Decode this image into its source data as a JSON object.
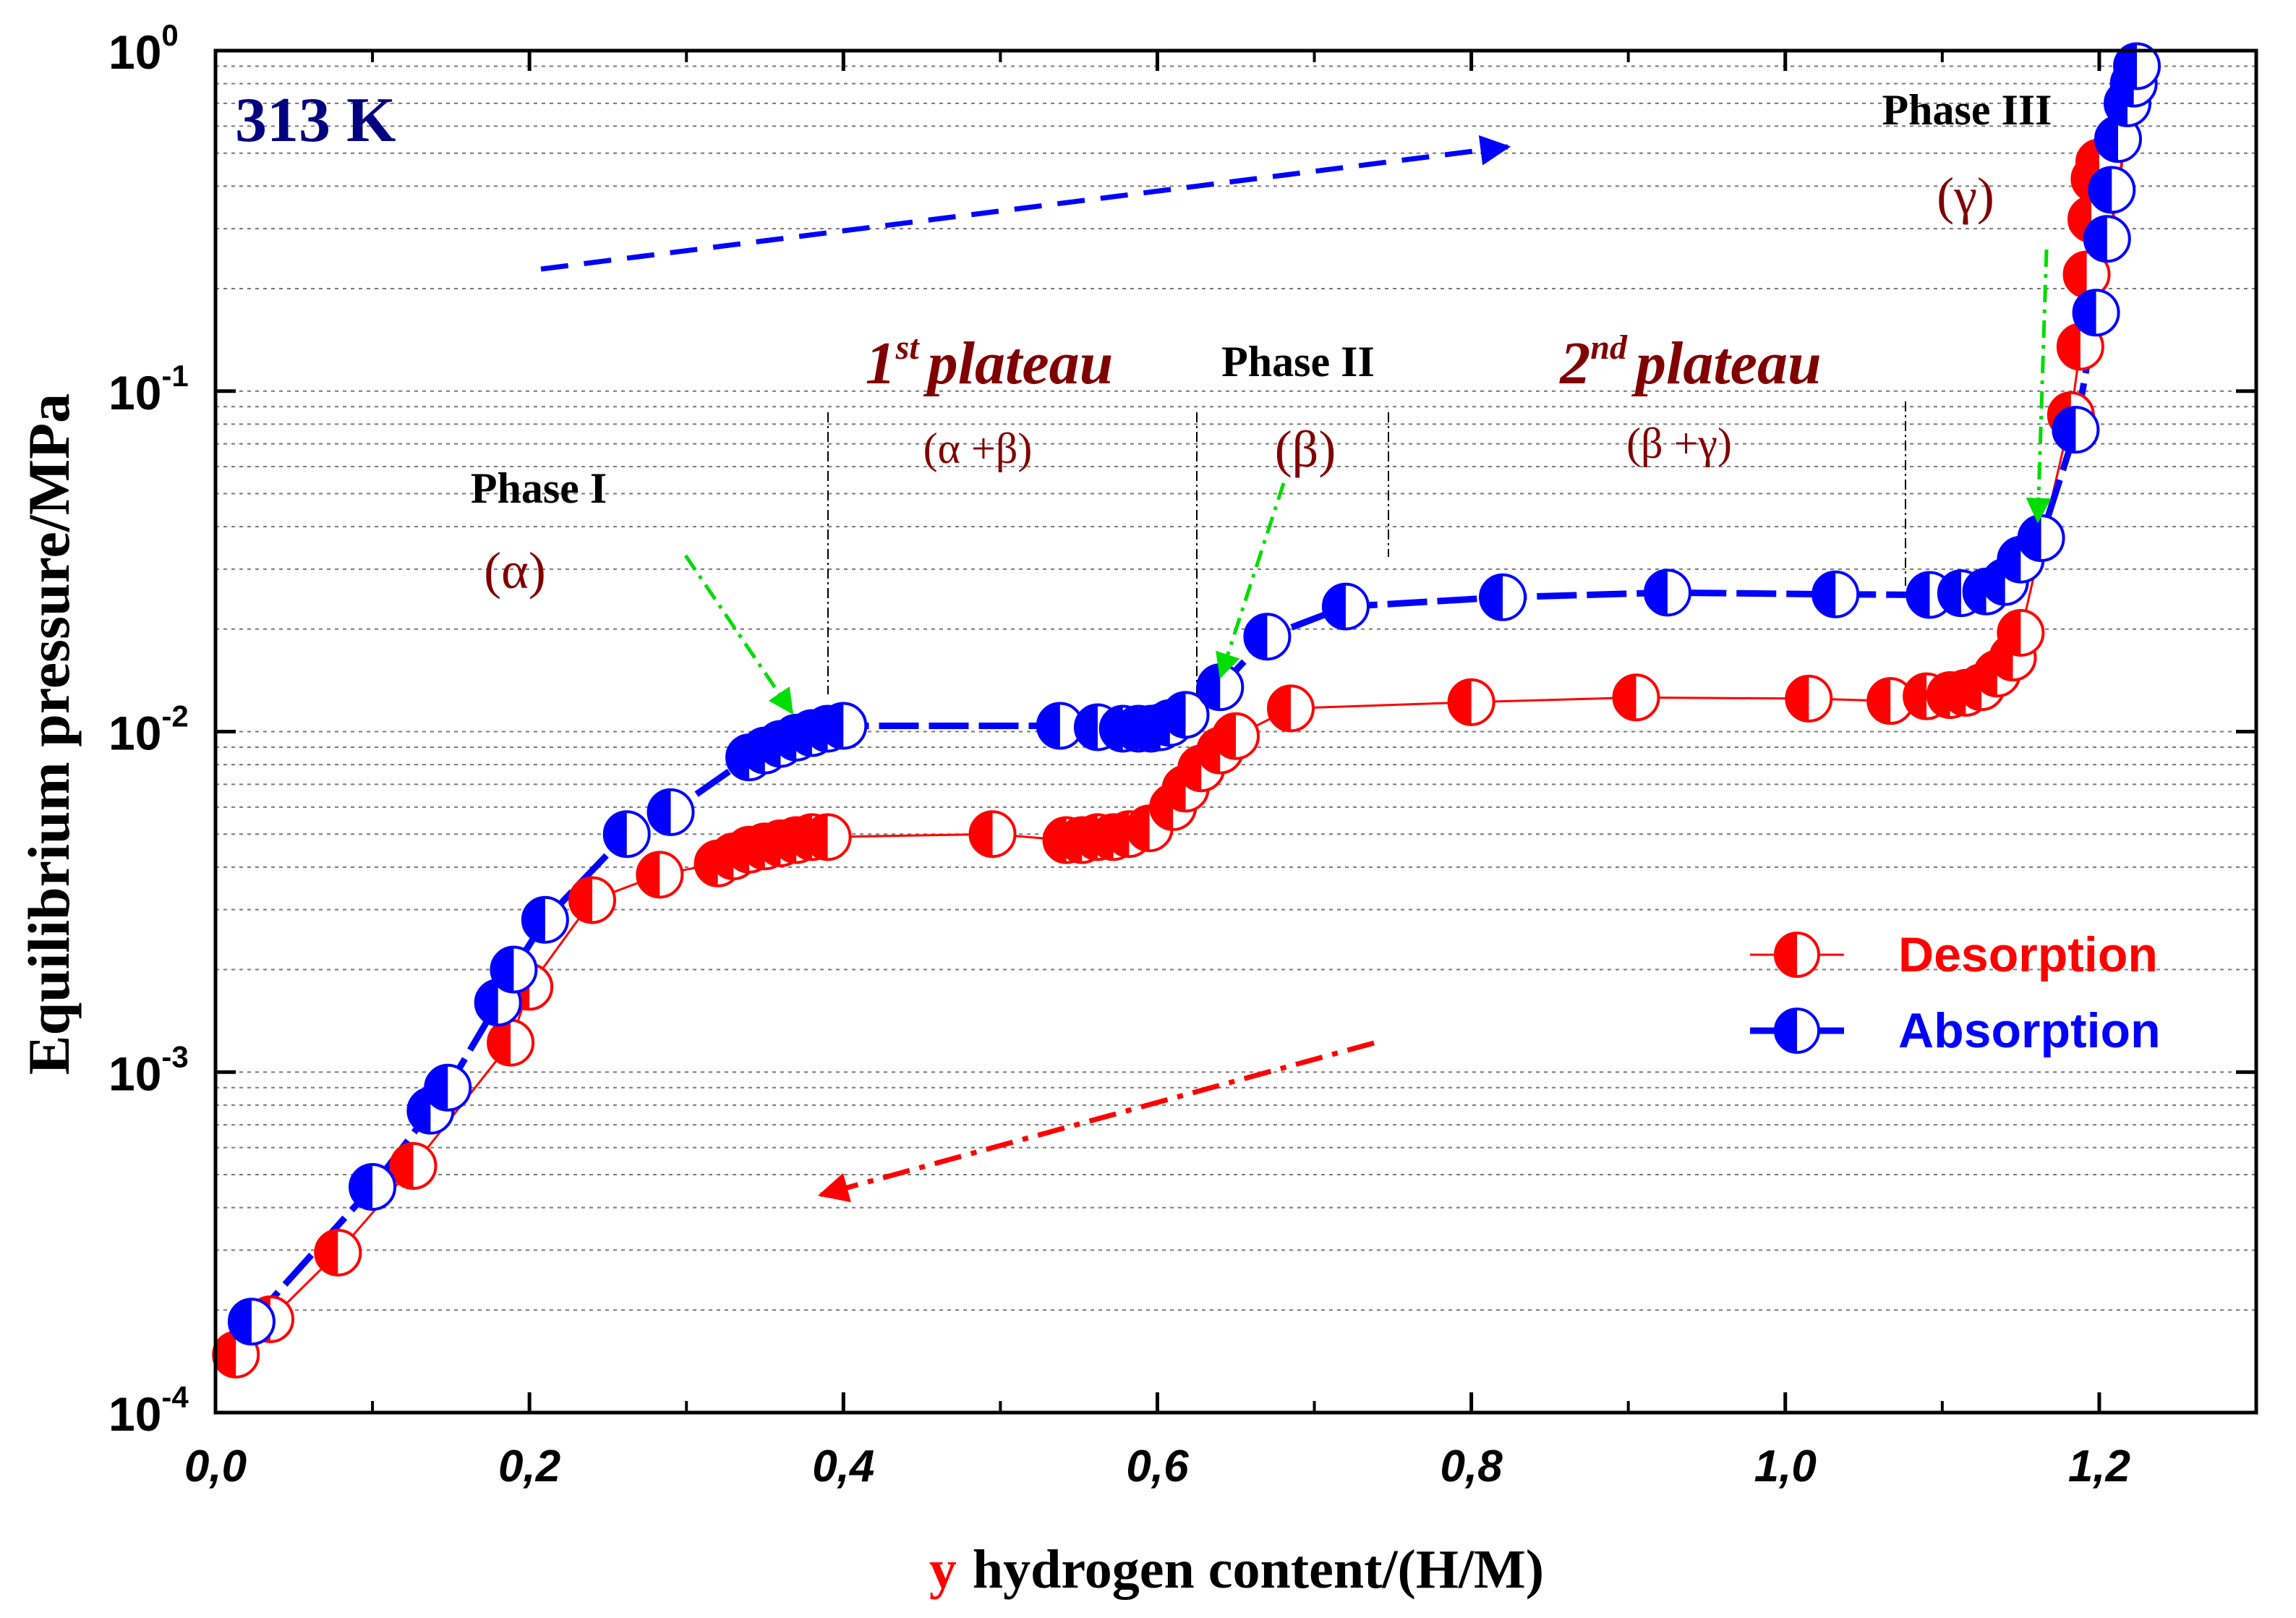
{
  "chart_data": {
    "type": "scatter",
    "title": "",
    "temperature_label": "313 K",
    "xlabel_prefix": "y",
    "xlabel": "hydrogen content/(H/M)",
    "ylabel": "Equilibrium pressure/MPa",
    "xlim": [
      0.0,
      1.3
    ],
    "ylim": [
      0.0001,
      1.0
    ],
    "yscale": "log",
    "grid": "horizontal-dotted",
    "x_ticks": [
      "0,0",
      "0,2",
      "0,4",
      "0,6",
      "0,8",
      "1,0",
      "1,2"
    ],
    "x_tick_values": [
      0.0,
      0.2,
      0.4,
      0.6,
      0.8,
      1.0,
      1.2
    ],
    "y_ticks": [
      {
        "base": "10",
        "exp": "-4",
        "value": 0.0001
      },
      {
        "base": "10",
        "exp": "-3",
        "value": 0.001
      },
      {
        "base": "10",
        "exp": "-2",
        "value": 0.01
      },
      {
        "base": "10",
        "exp": "-1",
        "value": 0.1
      },
      {
        "base": "10",
        "exp": "0",
        "value": 1.0
      }
    ],
    "legend_position": "right",
    "series": [
      {
        "name": "Desorption",
        "color": "#ff0000",
        "line": "thin-solid",
        "points": [
          [
            0.013,
            0.000148
          ],
          [
            0.035,
            0.000188
          ],
          [
            0.078,
            0.000295
          ],
          [
            0.126,
            0.00053
          ],
          [
            0.188,
            0.00122
          ],
          [
            0.2,
            0.00178
          ],
          [
            0.24,
            0.0032
          ],
          [
            0.283,
            0.0038
          ],
          [
            0.32,
            0.0041
          ],
          [
            0.33,
            0.0043
          ],
          [
            0.34,
            0.0045
          ],
          [
            0.35,
            0.0046
          ],
          [
            0.36,
            0.0047
          ],
          [
            0.37,
            0.0048
          ],
          [
            0.38,
            0.0049
          ],
          [
            0.39,
            0.0049
          ],
          [
            0.495,
            0.005
          ],
          [
            0.542,
            0.0048
          ],
          [
            0.552,
            0.0048
          ],
          [
            0.562,
            0.0049
          ],
          [
            0.572,
            0.0049
          ],
          [
            0.582,
            0.005
          ],
          [
            0.595,
            0.0052
          ],
          [
            0.61,
            0.006
          ],
          [
            0.618,
            0.0068
          ],
          [
            0.628,
            0.0078
          ],
          [
            0.64,
            0.0088
          ],
          [
            0.65,
            0.0097
          ],
          [
            0.685,
            0.0117
          ],
          [
            0.8,
            0.0122
          ],
          [
            0.905,
            0.0126
          ],
          [
            1.015,
            0.0125
          ],
          [
            1.067,
            0.0123
          ],
          [
            1.09,
            0.0127
          ],
          [
            1.105,
            0.0128
          ],
          [
            1.115,
            0.013
          ],
          [
            1.125,
            0.0135
          ],
          [
            1.135,
            0.0148
          ],
          [
            1.145,
            0.0165
          ],
          [
            1.15,
            0.0195
          ],
          [
            1.182,
            0.085
          ],
          [
            1.188,
            0.135
          ],
          [
            1.192,
            0.22
          ],
          [
            1.195,
            0.32
          ],
          [
            1.197,
            0.42
          ],
          [
            1.2,
            0.47
          ]
        ]
      },
      {
        "name": "Absorption",
        "color": "#0000ff",
        "line": "thick-dashed",
        "points": [
          [
            0.023,
            0.000185
          ],
          [
            0.1,
            0.00046
          ],
          [
            0.137,
            0.00077
          ],
          [
            0.148,
            0.0009
          ],
          [
            0.18,
            0.0016
          ],
          [
            0.19,
            0.002
          ],
          [
            0.21,
            0.0028
          ],
          [
            0.262,
            0.005
          ],
          [
            0.29,
            0.0058
          ],
          [
            0.34,
            0.0084
          ],
          [
            0.35,
            0.0088
          ],
          [
            0.36,
            0.0092
          ],
          [
            0.37,
            0.0096
          ],
          [
            0.38,
            0.0099
          ],
          [
            0.39,
            0.0102
          ],
          [
            0.4,
            0.0104
          ],
          [
            0.538,
            0.0104
          ],
          [
            0.562,
            0.0103
          ],
          [
            0.578,
            0.0102
          ],
          [
            0.588,
            0.0102
          ],
          [
            0.596,
            0.0102
          ],
          [
            0.602,
            0.0103
          ],
          [
            0.608,
            0.0106
          ],
          [
            0.618,
            0.0112
          ],
          [
            0.64,
            0.0135
          ],
          [
            0.67,
            0.019
          ],
          [
            0.72,
            0.0233
          ],
          [
            0.82,
            0.0248
          ],
          [
            0.925,
            0.0256
          ],
          [
            1.032,
            0.0253
          ],
          [
            1.092,
            0.0252
          ],
          [
            1.112,
            0.0255
          ],
          [
            1.128,
            0.0258
          ],
          [
            1.14,
            0.0275
          ],
          [
            1.15,
            0.032
          ],
          [
            1.163,
            0.037
          ],
          [
            1.185,
            0.077
          ],
          [
            1.198,
            0.17
          ],
          [
            1.205,
            0.28
          ],
          [
            1.208,
            0.39
          ],
          [
            1.212,
            0.55
          ],
          [
            1.218,
            0.7
          ],
          [
            1.222,
            0.8
          ],
          [
            1.224,
            0.9
          ]
        ]
      }
    ],
    "annotations": {
      "phase1": {
        "label": "Phase I",
        "sub": "(α)"
      },
      "phase2": {
        "label": "Phase II",
        "sub": "(β)"
      },
      "phase3": {
        "label": "Phase III",
        "sub": "(γ)"
      },
      "plateau1": {
        "num": "1",
        "sup": "st",
        "word": "plateau",
        "sub": "(α +β)"
      },
      "plateau2": {
        "num": "2",
        "sup": "nd",
        "word": "plateau",
        "sub": "(β +γ)"
      }
    },
    "colors": {
      "desorption": "#ff0000",
      "absorption": "#0000ff",
      "annotation": "#800000",
      "green_arrow": "#00dd00",
      "temperature": "#000080"
    }
  }
}
